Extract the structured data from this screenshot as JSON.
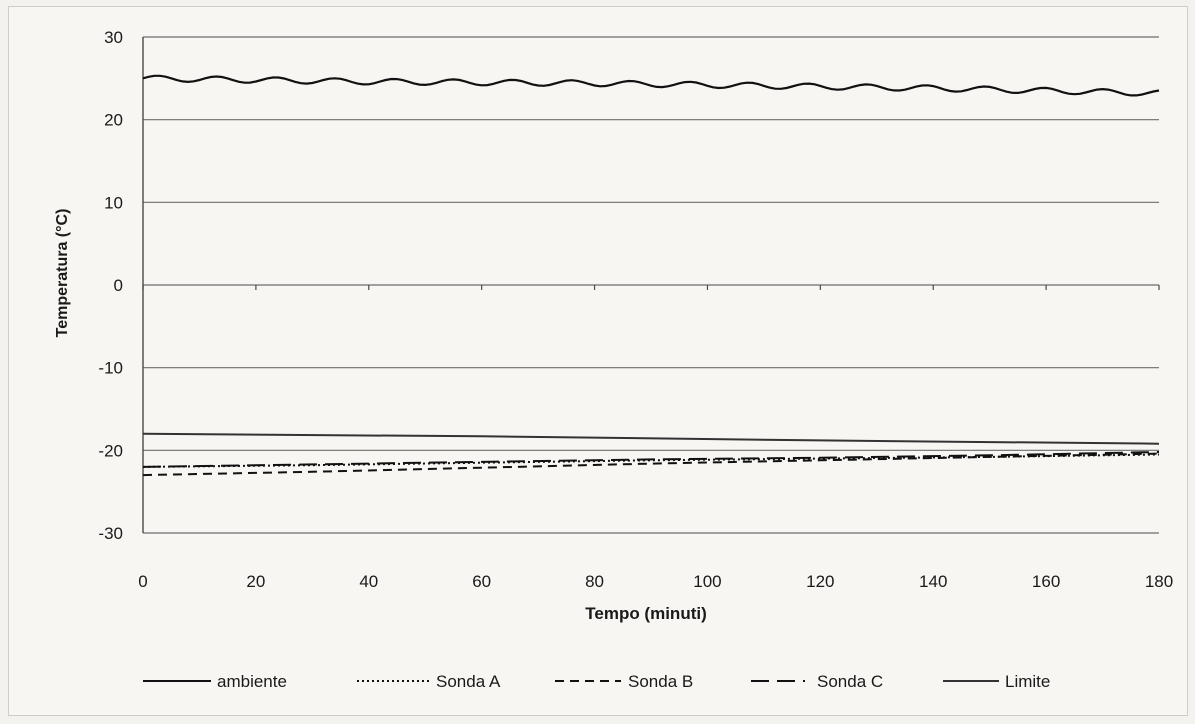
{
  "chart_data": {
    "type": "line",
    "title": "",
    "xlabel": "Tempo (minuti)",
    "ylabel": "Temperatura (°C)",
    "xlim": [
      0,
      180
    ],
    "ylim": [
      -30,
      30
    ],
    "x_ticks": [
      0,
      20,
      40,
      60,
      80,
      100,
      120,
      140,
      160,
      180
    ],
    "y_ticks": [
      30,
      20,
      10,
      0,
      -10,
      -20,
      -30
    ],
    "grid": "horizontal",
    "legend_position": "bottom",
    "series": [
      {
        "name": "ambiente",
        "style": "solid",
        "x": [
          0,
          20,
          40,
          60,
          80,
          100,
          120,
          140,
          160,
          180
        ],
        "y": [
          25,
          24.8,
          24.6,
          24.5,
          24.4,
          24.2,
          24.0,
          23.8,
          23.5,
          23.2
        ],
        "wavy": true
      },
      {
        "name": "Sonda A",
        "style": "dotted",
        "x": [
          0,
          30,
          60,
          90,
          120,
          150,
          180
        ],
        "y": [
          -22,
          -21.8,
          -21.5,
          -21.2,
          -21.0,
          -20.8,
          -20.5
        ]
      },
      {
        "name": "Sonda B",
        "style": "dashed",
        "x": [
          0,
          30,
          60,
          90,
          120,
          150,
          180
        ],
        "y": [
          -23,
          -22.6,
          -22.1,
          -21.6,
          -21.2,
          -20.8,
          -20.4
        ]
      },
      {
        "name": "Sonda C",
        "style": "longdash",
        "x": [
          0,
          30,
          60,
          90,
          120,
          150,
          180
        ],
        "y": [
          -22,
          -21.7,
          -21.4,
          -21.1,
          -20.9,
          -20.6,
          -20.2
        ]
      },
      {
        "name": "Limite",
        "style": "solid",
        "x": [
          0,
          60,
          120,
          180
        ],
        "y": [
          -18,
          -18.3,
          -18.8,
          -19.2
        ]
      }
    ]
  }
}
